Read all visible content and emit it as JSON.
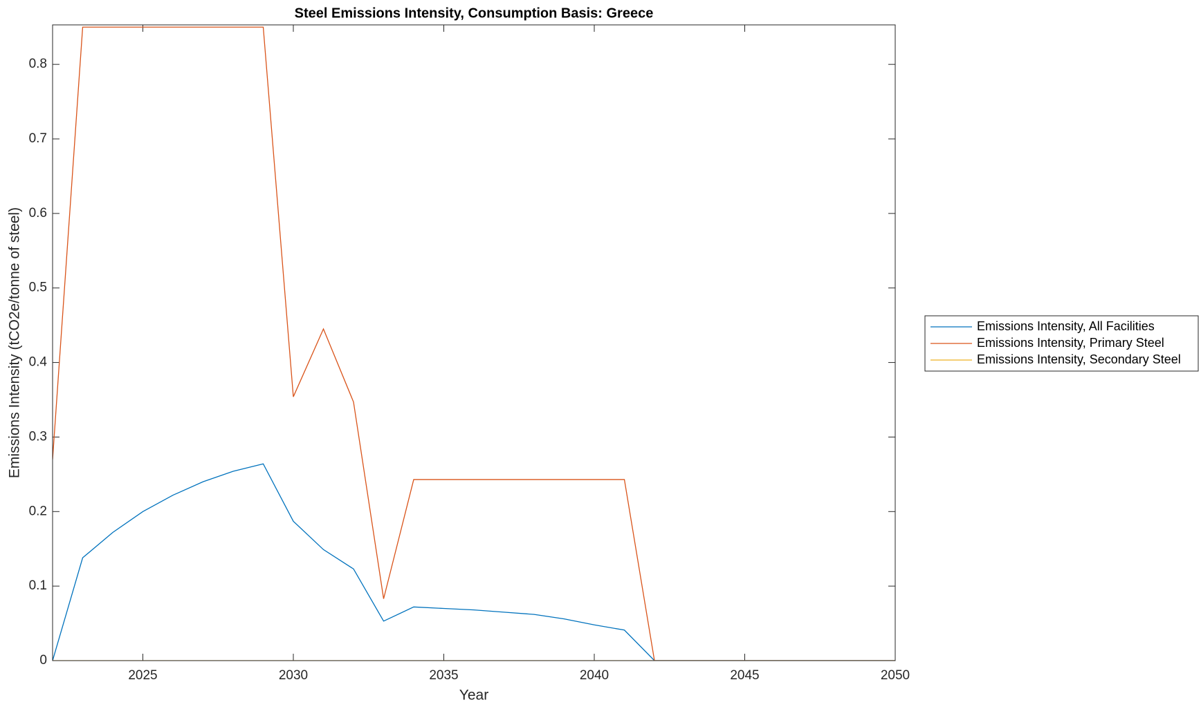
{
  "chart_data": {
    "type": "line",
    "title": "Steel Emissions Intensity, Consumption Basis: Greece",
    "x_label": "Year",
    "y_label": "Emissions Intensity (tCO2e/tonne of steel)",
    "x": [
      2022,
      2023,
      2024,
      2025,
      2026,
      2027,
      2028,
      2029,
      2030,
      2031,
      2032,
      2033,
      2034,
      2035,
      2036,
      2037,
      2038,
      2039,
      2040,
      2041,
      2042,
      2043,
      2044,
      2045,
      2046,
      2047,
      2048,
      2049,
      2050
    ],
    "series": [
      {
        "name": "Emissions Intensity, All Facilities",
        "color": "#0072BD",
        "values": [
          0,
          0.138,
          0.172,
          0.2,
          0.222,
          0.24,
          0.254,
          0.264,
          0.187,
          0.149,
          0.123,
          0.053,
          0.072,
          0.07,
          0.068,
          0.065,
          0.062,
          0.056,
          0.048,
          0.041,
          0,
          0,
          0,
          0,
          0,
          0,
          0,
          0,
          0
        ]
      },
      {
        "name": "Emissions Intensity, Primary Steel",
        "color": "#D95319",
        "values": [
          0.27,
          0.85,
          0.85,
          0.85,
          0.85,
          0.85,
          0.85,
          0.85,
          0.354,
          0.445,
          0.347,
          0.083,
          0.243,
          0.243,
          0.243,
          0.243,
          0.243,
          0.243,
          0.243,
          0.243,
          0,
          0,
          0,
          0,
          0,
          0,
          0,
          0,
          0
        ]
      },
      {
        "name": "Emissions Intensity, Secondary Steel",
        "color": "#EDB120",
        "values": [
          0,
          0,
          0,
          0,
          0,
          0,
          0,
          0,
          0,
          0,
          0,
          0,
          0,
          0,
          0,
          0,
          0,
          0,
          0,
          0,
          0,
          0,
          0,
          0,
          0,
          0,
          0,
          0,
          0
        ]
      }
    ],
    "xlim": [
      2022,
      2050
    ],
    "xticks": [
      2025,
      2030,
      2035,
      2040,
      2045,
      2050
    ],
    "ylim": [
      0,
      0.853
    ],
    "yticks": [
      0,
      0.1,
      0.2,
      0.3,
      0.4,
      0.5,
      0.6,
      0.7,
      0.8
    ],
    "grid": false,
    "legend": "outside-right"
  }
}
